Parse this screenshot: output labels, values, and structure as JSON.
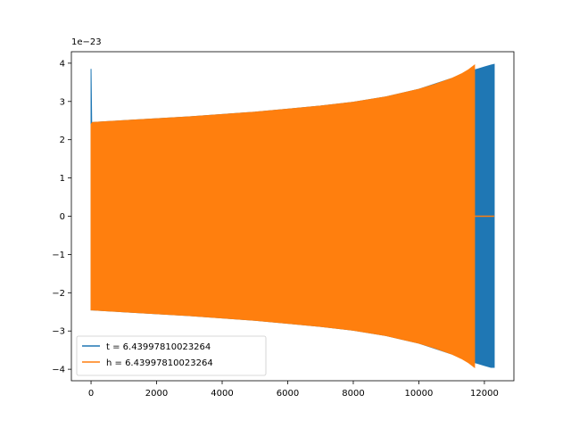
{
  "chart_data": {
    "type": "line",
    "title": "",
    "xlabel": "",
    "ylabel": "",
    "xlim": [
      -600,
      12900
    ],
    "ylim": [
      -4.3,
      4.3
    ],
    "y_offset_label": "1e−23",
    "x_ticks": [
      0,
      2000,
      4000,
      6000,
      8000,
      10000,
      12000
    ],
    "x_tick_labels": [
      "0",
      "2000",
      "4000",
      "6000",
      "8000",
      "10000",
      "12000"
    ],
    "y_ticks": [
      -4,
      -3,
      -2,
      -1,
      0,
      1,
      2,
      3,
      4
    ],
    "y_tick_labels": [
      "−4",
      "−3",
      "−2",
      "−1",
      "0",
      "1",
      "2",
      "3",
      "4"
    ],
    "grid": false,
    "legend_position": "lower-left",
    "series": [
      {
        "name": "t = 6.43997810023264",
        "color": "#1f77b4",
        "envelope": {
          "x": [
            0,
            20,
            40,
            1000,
            2000,
            3000,
            4000,
            5000,
            6000,
            7000,
            8000,
            9000,
            10000,
            11000,
            11500,
            11800,
            12000,
            12200,
            12300
          ],
          "upper": [
            3.85,
            2.45,
            2.45,
            2.5,
            2.55,
            2.6,
            2.66,
            2.72,
            2.8,
            2.88,
            2.98,
            3.12,
            3.32,
            3.6,
            3.78,
            3.85,
            3.9,
            3.95,
            3.97
          ],
          "lower": [
            -2.45,
            -2.45,
            -2.45,
            -2.5,
            -2.55,
            -2.6,
            -2.66,
            -2.72,
            -2.8,
            -2.88,
            -2.98,
            -3.12,
            -3.32,
            -3.6,
            -3.78,
            -3.85,
            -3.9,
            -3.95,
            -3.95
          ]
        }
      },
      {
        "name": "h = 6.43997810023264",
        "color": "#ff7f0e",
        "envelope": {
          "x": [
            0,
            40,
            1000,
            2000,
            3000,
            4000,
            5000,
            6000,
            7000,
            8000,
            9000,
            10000,
            10500,
            11000,
            11300,
            11500,
            11700
          ],
          "upper": [
            2.4,
            2.45,
            2.5,
            2.55,
            2.6,
            2.66,
            2.72,
            2.8,
            2.88,
            2.98,
            3.12,
            3.32,
            3.45,
            3.6,
            3.72,
            3.82,
            3.95
          ],
          "lower": [
            -2.45,
            -2.45,
            -2.5,
            -2.55,
            -2.6,
            -2.66,
            -2.72,
            -2.8,
            -2.88,
            -2.98,
            -3.12,
            -3.32,
            -3.45,
            -3.6,
            -3.72,
            -3.82,
            -3.95
          ]
        },
        "tail": {
          "x": [
            11700,
            12300
          ],
          "y": [
            0,
            0
          ]
        }
      }
    ]
  }
}
